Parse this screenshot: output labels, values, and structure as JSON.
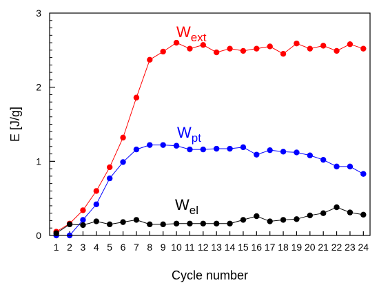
{
  "chart_data": {
    "type": "line",
    "xlabel": "Cycle number",
    "ylabel": "E [J/g]",
    "x": [
      1,
      2,
      3,
      4,
      5,
      6,
      7,
      8,
      9,
      10,
      11,
      12,
      13,
      14,
      15,
      16,
      17,
      18,
      19,
      20,
      21,
      22,
      23,
      24
    ],
    "xlim": [
      0.5,
      24.5
    ],
    "ylim": [
      0,
      3
    ],
    "y_ticks": [
      0,
      1,
      2,
      3
    ],
    "y_minor_step": 0.1,
    "grid": false,
    "series": [
      {
        "name": "W",
        "name_sub": "ext",
        "color": "#ff0000",
        "values": [
          0.05,
          0.16,
          0.34,
          0.6,
          0.92,
          1.32,
          1.86,
          2.37,
          2.48,
          2.6,
          2.52,
          2.57,
          2.47,
          2.52,
          2.49,
          2.52,
          2.55,
          2.45,
          2.59,
          2.52,
          2.56,
          2.49,
          2.58,
          2.52
        ]
      },
      {
        "name": "W",
        "name_sub": "pt",
        "color": "#0000ff",
        "values": [
          0.0,
          0.0,
          0.21,
          0.42,
          0.77,
          0.99,
          1.16,
          1.22,
          1.22,
          1.21,
          1.16,
          1.16,
          1.17,
          1.17,
          1.19,
          1.09,
          1.15,
          1.13,
          1.12,
          1.08,
          1.02,
          0.93,
          0.93,
          0.83
        ]
      },
      {
        "name": "W",
        "name_sub": "el",
        "color": "#000000",
        "values": [
          0.03,
          0.15,
          0.14,
          0.19,
          0.15,
          0.18,
          0.21,
          0.15,
          0.15,
          0.16,
          0.16,
          0.16,
          0.16,
          0.16,
          0.21,
          0.26,
          0.19,
          0.21,
          0.22,
          0.27,
          0.3,
          0.38,
          0.31,
          0.28
        ]
      }
    ]
  }
}
